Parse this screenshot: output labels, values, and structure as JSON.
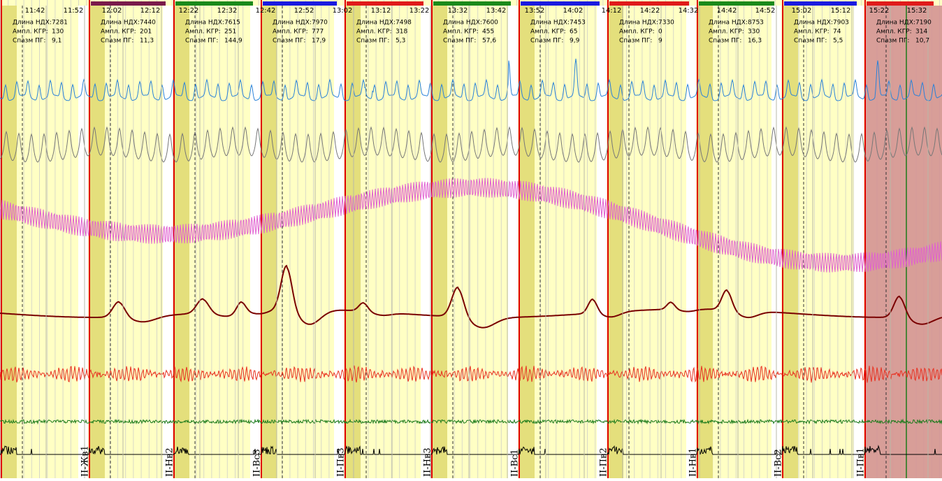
{
  "time_labels": [
    "11:42",
    "11:52",
    "12:02",
    "12:12",
    "12:22",
    "12:32",
    "12:42",
    "12:52",
    "13:02",
    "13:12",
    "13:22",
    "13:32",
    "13:42",
    "13:52",
    "14:02",
    "14:12",
    "14:22",
    "14:32",
    "14:42",
    "14:52",
    "15:02",
    "15:12",
    "15:22",
    "15:32"
  ],
  "stat_labels": [
    "Длина НДХ:",
    "Ампл. КГР:",
    "Спазм ПГ:"
  ],
  "segments": [
    {
      "stats": [
        "7281",
        "130",
        "9,1"
      ]
    },
    {
      "stats": [
        "7440",
        "201",
        "11,3"
      ]
    },
    {
      "stats": [
        "7615",
        "251",
        "144,9"
      ]
    },
    {
      "stats": [
        "7970",
        "777",
        "17,9"
      ]
    },
    {
      "stats": [
        "7498",
        "318",
        "5,3"
      ]
    },
    {
      "stats": [
        "7600",
        "455",
        "57,6"
      ]
    },
    {
      "stats": [
        "7453",
        "65",
        "9,9"
      ]
    },
    {
      "stats": [
        "7330",
        "0",
        "9"
      ]
    },
    {
      "stats": [
        "8753",
        "330",
        "16,3"
      ]
    },
    {
      "stats": [
        "7903",
        "74",
        "5,5"
      ]
    },
    {
      "stats": [
        "7190",
        "314",
        "10,7"
      ]
    }
  ],
  "markers": [
    "II-Жв1",
    "II-Нв2",
    "II-Вс3",
    "II-Пв3",
    "II-Нв3",
    "II-Вс1",
    "II-Пв2",
    "II-Нв1",
    "II-Вс2",
    "II-Пв1"
  ]
}
